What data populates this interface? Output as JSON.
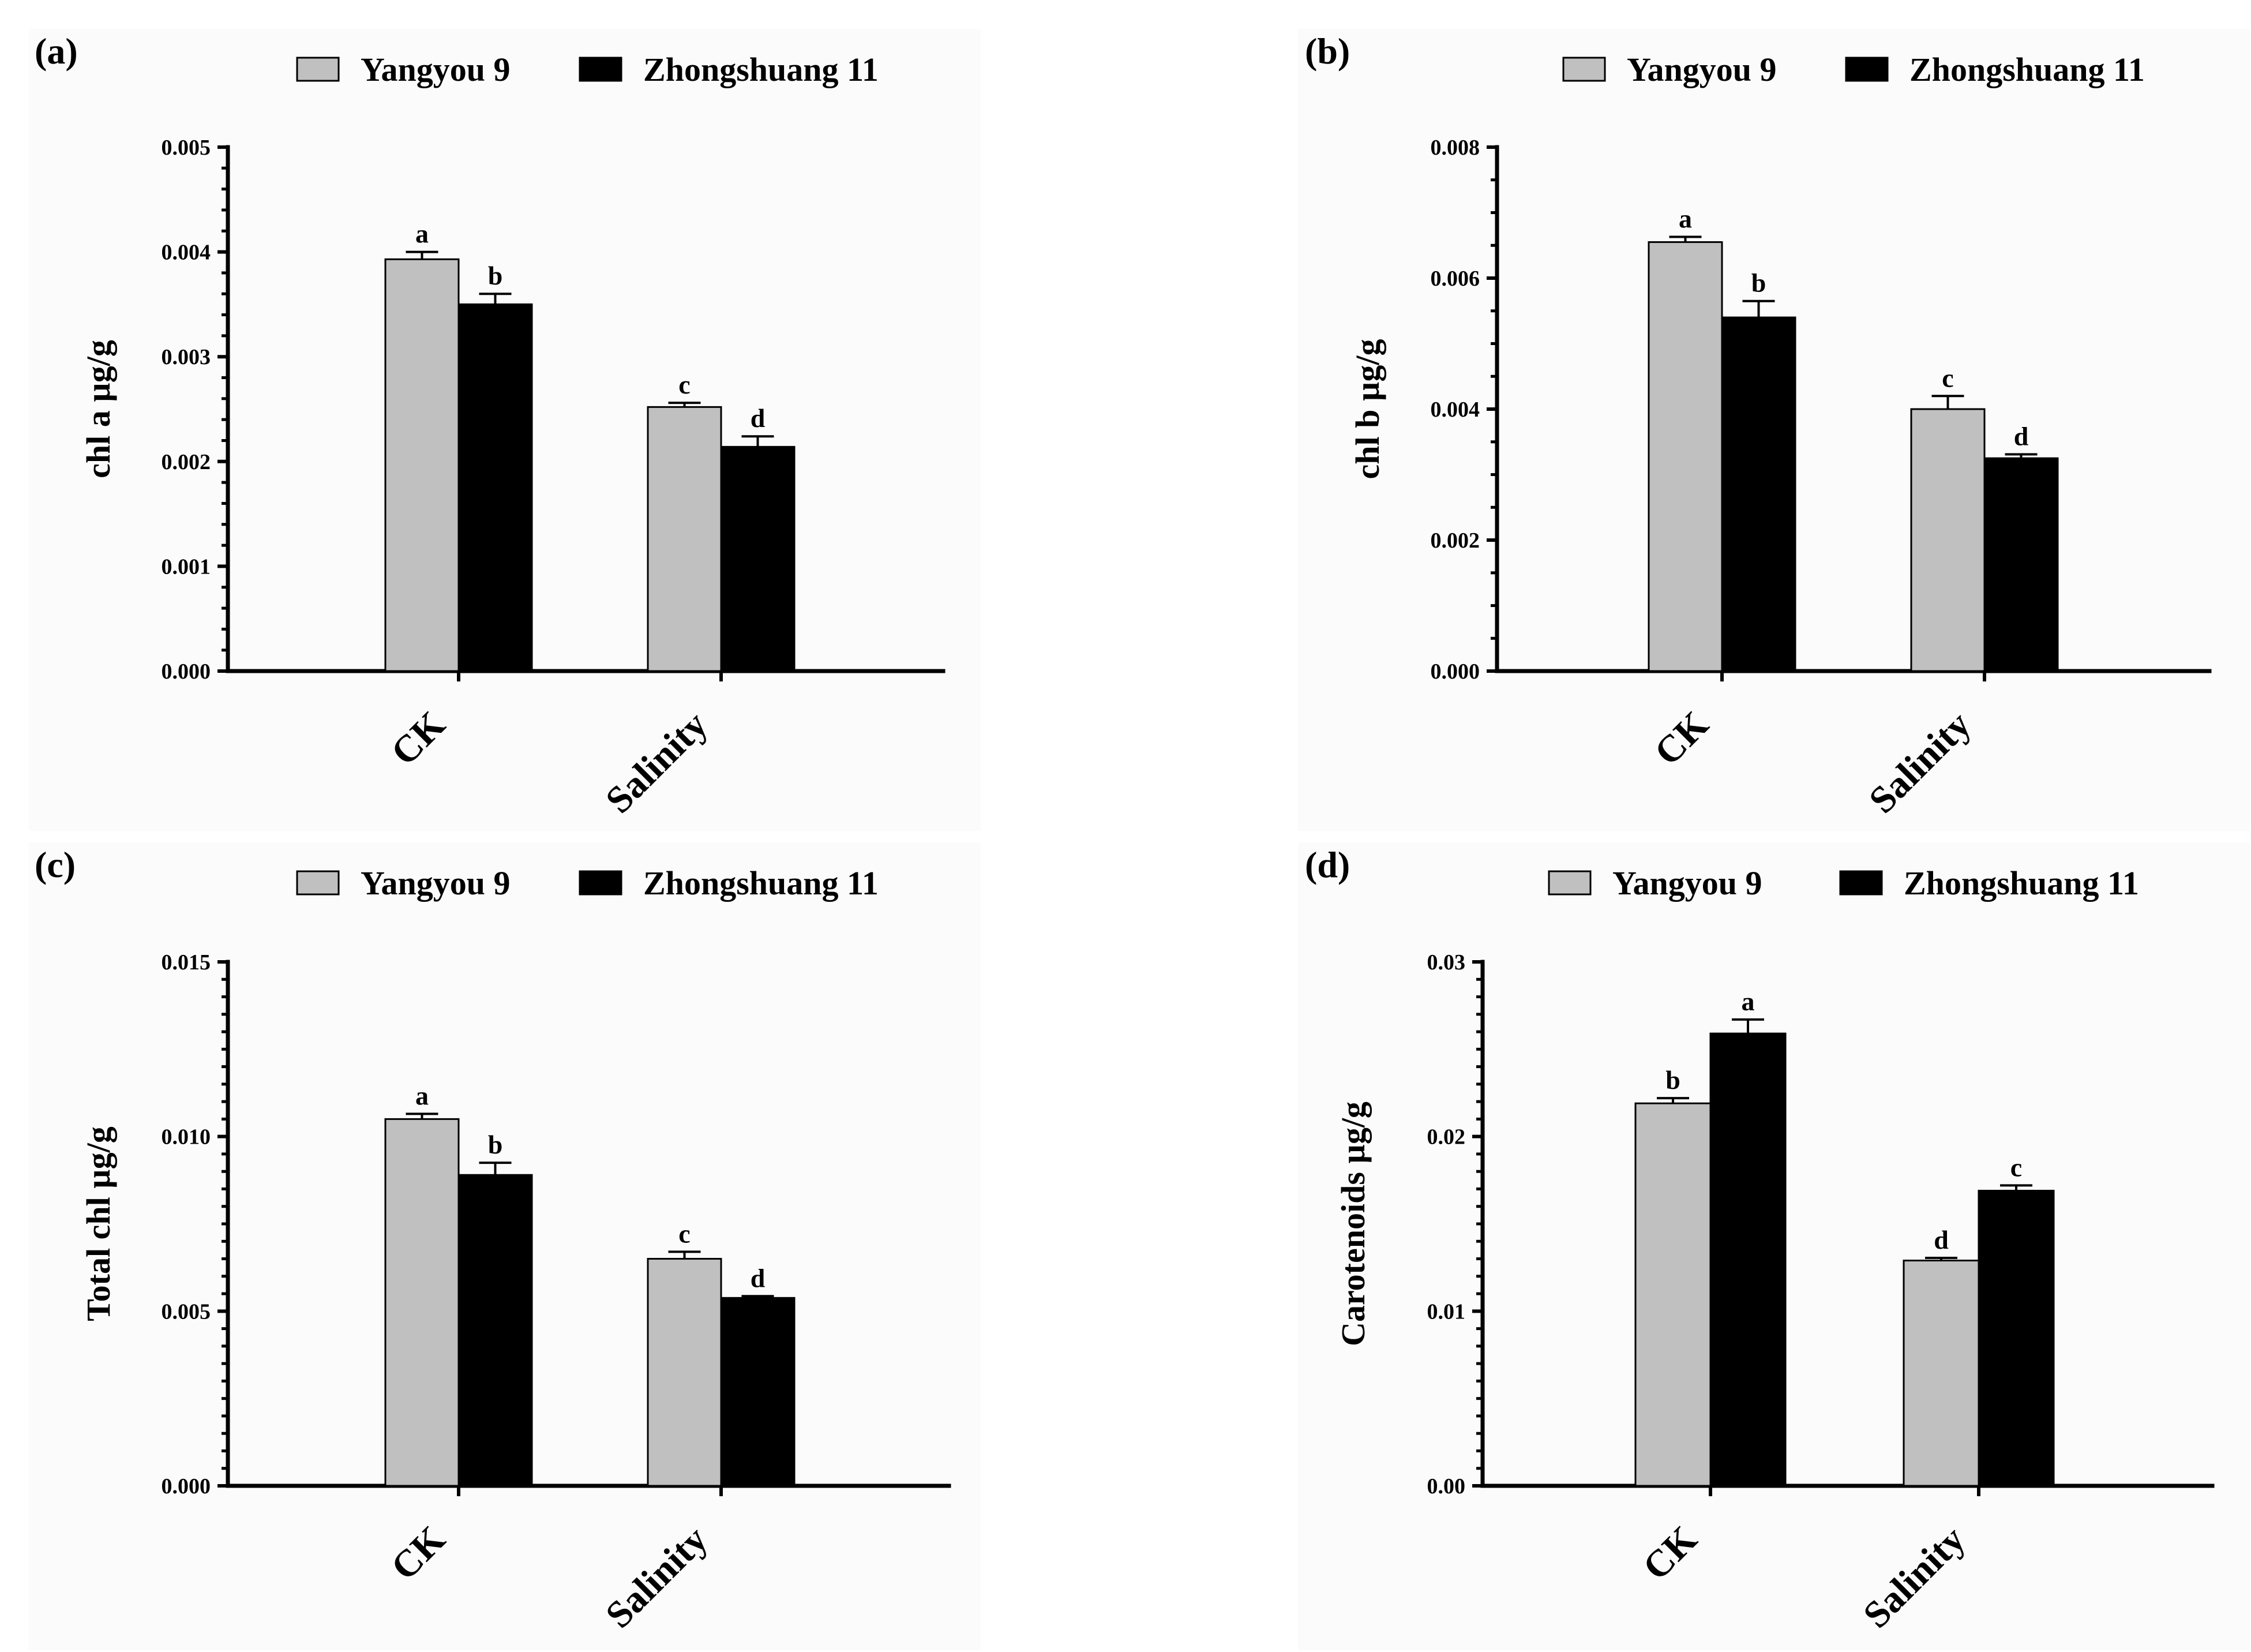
{
  "chart_data": [
    {
      "type": "bar",
      "panel_label": "(a)",
      "categories": [
        "CK",
        "Salinity"
      ],
      "series": [
        {
          "name": "Yangyou 9",
          "color": "#c0c0c0",
          "values": [
            0.00393,
            0.00252
          ],
          "errors": [
            7e-05,
            4e-05
          ],
          "letters": [
            "a",
            "c"
          ]
        },
        {
          "name": "Zhongshuang 11",
          "color": "#000000",
          "values": [
            0.0035,
            0.00214
          ],
          "errors": [
            0.0001,
            0.0001
          ],
          "letters": [
            "b",
            "d"
          ]
        }
      ],
      "ylabel": "chl a µg/g",
      "ylim": [
        0,
        0.005
      ],
      "yticks": [
        "0.000",
        "0.001",
        "0.002",
        "0.003",
        "0.004",
        "0.005"
      ],
      "minor_per_major": 5
    },
    {
      "type": "bar",
      "panel_label": "(b)",
      "categories": [
        "CK",
        "Salinity"
      ],
      "series": [
        {
          "name": "Yangyou 9",
          "color": "#c0c0c0",
          "values": [
            0.00655,
            0.004
          ],
          "errors": [
            8e-05,
            0.0002
          ],
          "letters": [
            "a",
            "c"
          ]
        },
        {
          "name": "Zhongshuang 11",
          "color": "#000000",
          "values": [
            0.0054,
            0.00325
          ],
          "errors": [
            0.00025,
            6e-05
          ],
          "letters": [
            "b",
            "d"
          ]
        }
      ],
      "ylabel": "chl b µg/g",
      "ylim": [
        0,
        0.008
      ],
      "yticks": [
        "0.000",
        "0.002",
        "0.004",
        "0.006",
        "0.008"
      ],
      "minor_per_major": 4
    },
    {
      "type": "bar",
      "panel_label": "(c)",
      "categories": [
        "CK",
        "Salinity"
      ],
      "series": [
        {
          "name": "Yangyou 9",
          "color": "#c0c0c0",
          "values": [
            0.0105,
            0.0065
          ],
          "errors": [
            0.00015,
            0.0002
          ],
          "letters": [
            "a",
            "c"
          ]
        },
        {
          "name": "Zhongshuang 11",
          "color": "#000000",
          "values": [
            0.0089,
            0.00538
          ],
          "errors": [
            0.00035,
            5e-05
          ],
          "letters": [
            "b",
            "d"
          ]
        }
      ],
      "ylabel": "Total chl µg/g",
      "ylim": [
        0,
        0.015
      ],
      "yticks": [
        "0.000",
        "0.005",
        "0.010",
        "0.015"
      ],
      "minor_per_major": 10
    },
    {
      "type": "bar",
      "panel_label": "(d)",
      "categories": [
        "CK",
        "Salinity"
      ],
      "series": [
        {
          "name": "Yangyou 9",
          "color": "#c0c0c0",
          "values": [
            0.0219,
            0.0129
          ],
          "errors": [
            0.0003,
            0.00015
          ],
          "letters": [
            "b",
            "d"
          ]
        },
        {
          "name": "Zhongshuang 11",
          "color": "#000000",
          "values": [
            0.0259,
            0.0169
          ],
          "errors": [
            0.0008,
            0.0003
          ],
          "letters": [
            "a",
            "c"
          ]
        }
      ],
      "ylabel": "Carotenoids µg/g",
      "ylim": [
        0,
        0.03
      ],
      "yticks": [
        "0.00",
        "0.01",
        "0.02",
        "0.03"
      ],
      "minor_per_major": 10
    }
  ]
}
